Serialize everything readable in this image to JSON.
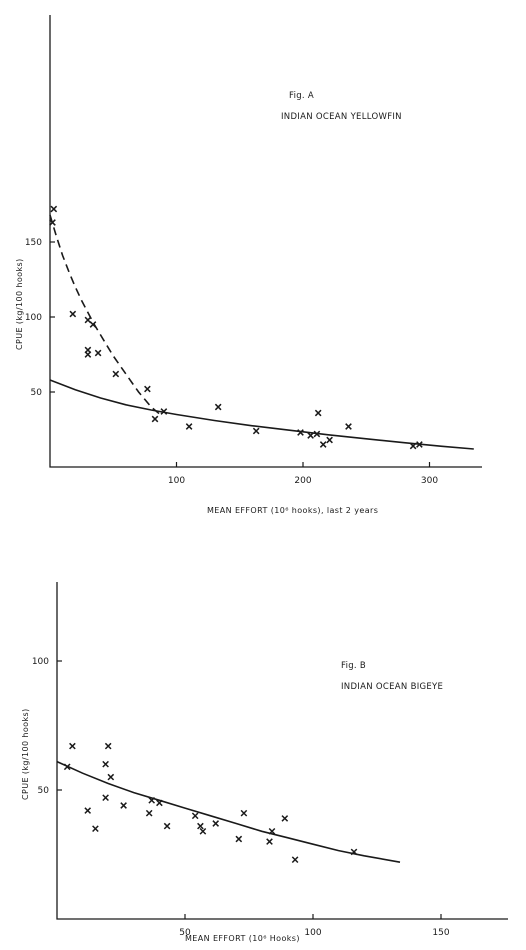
{
  "chart_data": [
    {
      "type": "scatter",
      "figure_label": "Fig. A",
      "title": "INDIAN OCEAN YELLOWFIN",
      "xlabel": "MEAN EFFORT  (10⁶ hooks), last 2 years",
      "ylabel": "CPUE  (kg/100 hooks)",
      "xlim": [
        0,
        340
      ],
      "ylim": [
        0,
        180
      ],
      "xticks": [
        100,
        200,
        300
      ],
      "yticks": [
        50,
        100,
        150
      ],
      "grid": false,
      "points": [
        [
          3,
          172
        ],
        [
          2,
          163
        ],
        [
          18,
          102
        ],
        [
          30,
          98
        ],
        [
          34,
          95
        ],
        [
          30,
          78
        ],
        [
          30,
          75
        ],
        [
          38,
          76
        ],
        [
          52,
          62
        ],
        [
          77,
          52
        ],
        [
          83,
          32
        ],
        [
          90,
          37
        ],
        [
          110,
          27
        ],
        [
          133,
          40
        ],
        [
          163,
          24
        ],
        [
          198,
          23
        ],
        [
          206,
          21
        ],
        [
          211,
          22
        ],
        [
          212,
          36
        ],
        [
          216,
          15
        ],
        [
          221,
          18
        ],
        [
          236,
          27
        ],
        [
          287,
          14
        ],
        [
          292,
          15
        ]
      ],
      "curves": [
        {
          "style": "solid",
          "x": [
            0,
            20,
            40,
            60,
            80,
            100,
            130,
            160,
            190,
            220,
            250,
            280,
            310,
            335
          ],
          "y": [
            58,
            51.5,
            46,
            41.5,
            38,
            35,
            31,
            27.5,
            24.5,
            21.5,
            18.8,
            16.2,
            13.8,
            12
          ]
        },
        {
          "style": "dashed",
          "x": [
            0,
            5,
            10,
            15,
            20,
            25,
            30,
            35,
            40,
            45,
            50,
            55,
            60,
            65,
            70,
            75,
            80,
            87
          ],
          "y": [
            168,
            154,
            141,
            130,
            120,
            111,
            103,
            95,
            88,
            81,
            74,
            68,
            62,
            56,
            50,
            45,
            40,
            35
          ]
        }
      ]
    },
    {
      "type": "scatter",
      "figure_label": "Fig. B",
      "title": "INDIAN OCEAN BIGEYE",
      "xlabel": "MEAN EFFORT  (10⁶ Hooks)",
      "ylabel": "CPUE  (kg/100 hooks)",
      "xlim": [
        0,
        180
      ],
      "ylim": [
        0,
        130
      ],
      "xticks": [
        50,
        100,
        150
      ],
      "yticks": [
        50,
        100
      ],
      "grid": false,
      "points": [
        [
          4,
          59
        ],
        [
          6,
          67
        ],
        [
          12,
          42
        ],
        [
          15,
          35
        ],
        [
          19,
          47
        ],
        [
          19,
          60
        ],
        [
          20,
          67
        ],
        [
          21,
          55
        ],
        [
          26,
          44
        ],
        [
          36,
          41
        ],
        [
          37,
          46
        ],
        [
          40,
          45
        ],
        [
          43,
          36
        ],
        [
          54,
          40
        ],
        [
          56,
          36
        ],
        [
          57,
          34
        ],
        [
          62,
          37
        ],
        [
          71,
          31
        ],
        [
          73,
          41
        ],
        [
          83,
          30
        ],
        [
          84,
          34
        ],
        [
          89,
          39
        ],
        [
          93,
          23
        ],
        [
          116,
          26
        ]
      ],
      "curves": [
        {
          "style": "solid",
          "x": [
            0,
            10,
            20,
            30,
            40,
            50,
            60,
            70,
            80,
            90,
            100,
            110,
            120,
            134
          ],
          "y": [
            61,
            56.5,
            52.5,
            49,
            46,
            43,
            40,
            37,
            34,
            31.5,
            29,
            26.5,
            24.5,
            22
          ]
        }
      ]
    }
  ]
}
